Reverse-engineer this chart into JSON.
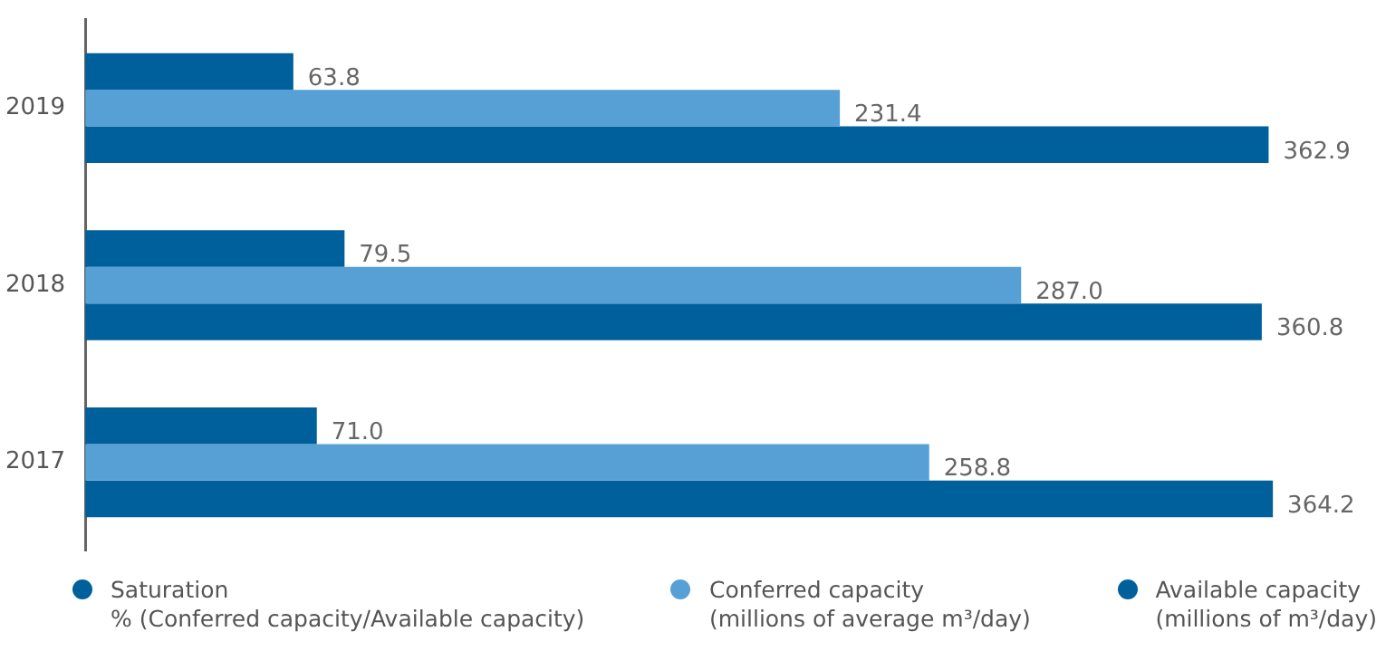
{
  "chart_data": {
    "type": "bar",
    "orientation": "horizontal",
    "categories": [
      "2019",
      "2018",
      "2017"
    ],
    "series": [
      {
        "name": "Saturation\n% (Conferred capacity/Available capacity)",
        "color": "#00609c",
        "values": [
          63.8,
          79.5,
          71.0
        ],
        "value_labels": [
          "63.8",
          "79.5",
          "71.0"
        ]
      },
      {
        "name": "Conferred capacity\n(millions of average m³/day)",
        "color": "#56a0d6",
        "values": [
          231.4,
          287.0,
          258.8
        ],
        "value_labels": [
          "231.4",
          "287.0",
          "258.8"
        ]
      },
      {
        "name": "Available capacity\n(millions of m³/day)",
        "color": "#00609c",
        "values": [
          362.9,
          360.8,
          364.2
        ],
        "value_labels": [
          "362.9",
          "360.8",
          "364.2"
        ]
      }
    ],
    "legend": "bottom",
    "tick_labels": "y"
  }
}
